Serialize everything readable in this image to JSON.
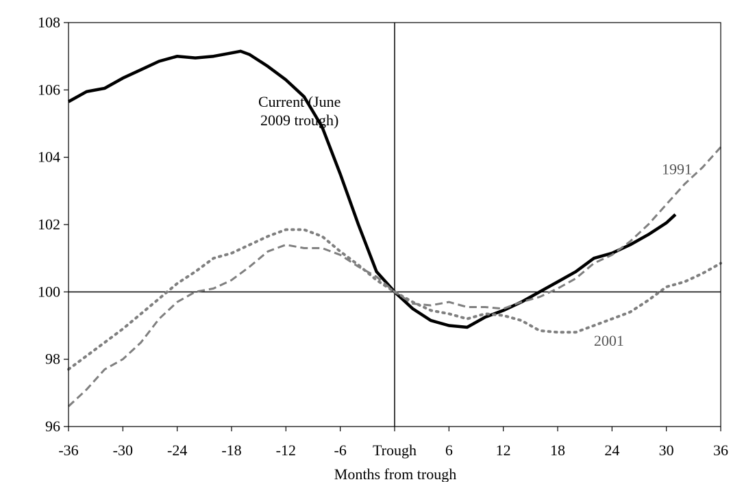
{
  "chart_data": {
    "type": "line",
    "title": "",
    "xlabel": "Months from trough",
    "ylabel": "",
    "xlim": [
      -36,
      36
    ],
    "ylim": [
      96,
      108
    ],
    "x_ticks": [
      {
        "value": -36,
        "label": "-36"
      },
      {
        "value": -30,
        "label": "-30"
      },
      {
        "value": -24,
        "label": "-24"
      },
      {
        "value": -18,
        "label": "-18"
      },
      {
        "value": -12,
        "label": "-12"
      },
      {
        "value": -6,
        "label": "-6"
      },
      {
        "value": 0,
        "label": "Trough"
      },
      {
        "value": 6,
        "label": "6"
      },
      {
        "value": 12,
        "label": "12"
      },
      {
        "value": 18,
        "label": "18"
      },
      {
        "value": 24,
        "label": "24"
      },
      {
        "value": 30,
        "label": "30"
      },
      {
        "value": 36,
        "label": "36"
      }
    ],
    "y_ticks": [
      {
        "value": 96,
        "label": "96"
      },
      {
        "value": 98,
        "label": "98"
      },
      {
        "value": 100,
        "label": "100"
      },
      {
        "value": 102,
        "label": "102"
      },
      {
        "value": 104,
        "label": "104"
      },
      {
        "value": 106,
        "label": "106"
      },
      {
        "value": 108,
        "label": "108"
      }
    ],
    "reference_lines": {
      "x": 0,
      "y": 100
    },
    "series": [
      {
        "name": "Current (June 2009 trough)",
        "label_lines": [
          "Current (June",
          "2009 trough)"
        ],
        "label_at": [
          -10.5,
          105.5
        ],
        "color": "#000000",
        "style": "solid",
        "x": [
          -36,
          -34,
          -32,
          -30,
          -28,
          -26,
          -24,
          -22,
          -20,
          -18,
          -17,
          -16,
          -14,
          -12,
          -10,
          -8,
          -6,
          -4,
          -2,
          0,
          2,
          4,
          6,
          8,
          10,
          12,
          14,
          16,
          18,
          20,
          22,
          24,
          26,
          28,
          30,
          31
        ],
        "y": [
          105.65,
          105.95,
          106.05,
          106.35,
          106.6,
          106.85,
          107.0,
          106.95,
          107.0,
          107.1,
          107.15,
          107.05,
          106.7,
          106.3,
          105.8,
          104.9,
          103.5,
          102.0,
          100.6,
          100.0,
          99.5,
          99.15,
          99.0,
          98.95,
          99.25,
          99.45,
          99.7,
          100.0,
          100.3,
          100.6,
          101.0,
          101.15,
          101.4,
          101.7,
          102.05,
          102.3
        ]
      },
      {
        "name": "1991",
        "label_lines": [
          "1991"
        ],
        "label_at": [
          29.5,
          103.5
        ],
        "color": "#7f7f7f",
        "style": "dashed",
        "x": [
          -36,
          -34,
          -32,
          -30,
          -28,
          -26,
          -24,
          -22,
          -20,
          -18,
          -16,
          -14,
          -12,
          -10,
          -8,
          -6,
          -4,
          -2,
          0,
          2,
          4,
          6,
          8,
          10,
          12,
          14,
          16,
          18,
          20,
          22,
          24,
          26,
          28,
          30,
          32,
          34,
          36
        ],
        "y": [
          96.6,
          97.1,
          97.7,
          98.0,
          98.5,
          99.2,
          99.7,
          100.0,
          100.1,
          100.35,
          100.75,
          101.2,
          101.4,
          101.3,
          101.3,
          101.1,
          100.75,
          100.45,
          100.0,
          99.65,
          99.6,
          99.7,
          99.55,
          99.55,
          99.5,
          99.7,
          99.85,
          100.1,
          100.4,
          100.85,
          101.1,
          101.5,
          102.0,
          102.6,
          103.2,
          103.7,
          104.3
        ]
      },
      {
        "name": "2001",
        "label_lines": [
          "2001"
        ],
        "label_at": [
          22,
          98.4
        ],
        "color": "#7f7f7f",
        "style": "dotted",
        "x": [
          -36,
          -34,
          -32,
          -30,
          -28,
          -26,
          -24,
          -22,
          -20,
          -18,
          -16,
          -14,
          -12,
          -10,
          -8,
          -6,
          -4,
          -2,
          0,
          2,
          4,
          6,
          8,
          10,
          12,
          14,
          16,
          18,
          20,
          22,
          24,
          26,
          28,
          30,
          32,
          34,
          36
        ],
        "y": [
          97.7,
          98.1,
          98.5,
          98.9,
          99.35,
          99.8,
          100.25,
          100.6,
          101.0,
          101.15,
          101.4,
          101.65,
          101.85,
          101.85,
          101.65,
          101.2,
          100.8,
          100.35,
          100.0,
          99.7,
          99.45,
          99.35,
          99.2,
          99.35,
          99.3,
          99.15,
          98.85,
          98.8,
          98.8,
          99.0,
          99.2,
          99.4,
          99.75,
          100.15,
          100.3,
          100.55,
          100.85
        ]
      }
    ]
  }
}
